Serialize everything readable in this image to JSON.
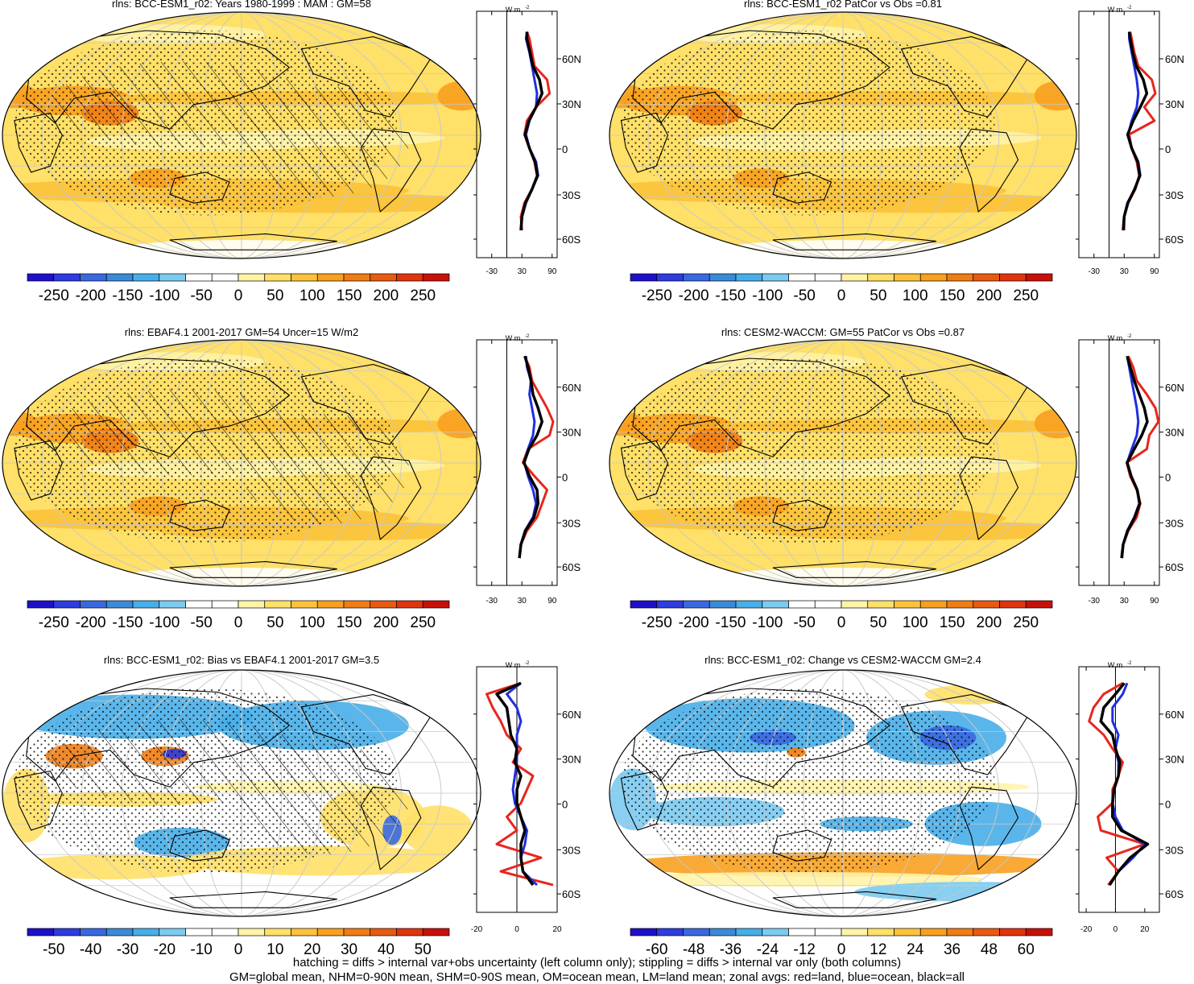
{
  "figure": {
    "footer_lines": [
      "hatching = diffs > internal var+obs uncertainty (left column only); stippling = diffs > internal var only (both columns)",
      "GM=global mean, NHM=0-90N mean, SHM=0-90S mean, OM=ocean mean, LM=land mean; zonal avgs: red=land, blue=ocean, black=all"
    ],
    "zonal_units_label": "W m",
    "zonal_units_exponent": "-2",
    "latitude_ticks": [
      "60N",
      "30N",
      "0",
      "30S",
      "60S"
    ],
    "line_colors": {
      "land": "#e8261c",
      "ocean": "#1f2fe0",
      "all": "#000000"
    }
  },
  "chart_data": [
    {
      "type": "heatmap",
      "title": "rlns: BCC-ESM1_r02: Years 1980-1999 : MAM : GM=58",
      "colorbar_labels": [
        "-250",
        "-200",
        "-150",
        "-100",
        "-50",
        "0",
        "50",
        "100",
        "150",
        "200",
        "250"
      ],
      "hatching": true,
      "stippling": true,
      "zonal_xlim": [
        -60,
        100
      ],
      "zonal_xticks": [
        "-30",
        "30",
        "90"
      ],
      "zonal_lat": [
        75,
        70,
        60,
        50,
        40,
        30,
        20,
        10,
        0,
        -10,
        -20,
        -30,
        -40,
        -50,
        -60,
        -70
      ],
      "zonal_series": [
        {
          "name": "land",
          "values": [
            40,
            45,
            50,
            55,
            80,
            85,
            58,
            40,
            35,
            45,
            55,
            60,
            50,
            35,
            28,
            30
          ]
        },
        {
          "name": "ocean",
          "values": [
            40,
            38,
            45,
            50,
            55,
            60,
            58,
            45,
            38,
            45,
            58,
            62,
            50,
            38,
            30,
            28
          ]
        },
        {
          "name": "all",
          "values": [
            40,
            40,
            46,
            52,
            65,
            70,
            58,
            44,
            36,
            45,
            56,
            61,
            50,
            37,
            30,
            28
          ]
        }
      ]
    },
    {
      "type": "heatmap",
      "title": "rlns: BCC-ESM1_r02 PatCor vs Obs =0.81",
      "colorbar_labels": [
        "-250",
        "-200",
        "-150",
        "-100",
        "-50",
        "0",
        "50",
        "100",
        "150",
        "200",
        "250"
      ],
      "hatching": false,
      "stippling": true,
      "zonal_xlim": [
        -60,
        100
      ],
      "zonal_xticks": [
        "-30",
        "30",
        "90"
      ],
      "zonal_lat": [
        75,
        70,
        60,
        50,
        40,
        30,
        20,
        10,
        0,
        -10,
        -20,
        -30,
        -40,
        -50,
        -60,
        -70
      ],
      "zonal_series": [
        {
          "name": "land",
          "values": [
            42,
            45,
            50,
            58,
            85,
            92,
            70,
            90,
            40,
            45,
            55,
            60,
            52,
            38,
            30,
            30
          ]
        },
        {
          "name": "ocean",
          "values": [
            40,
            40,
            45,
            50,
            55,
            58,
            55,
            45,
            38,
            45,
            58,
            62,
            50,
            38,
            30,
            28
          ]
        },
        {
          "name": "all",
          "values": [
            40,
            42,
            47,
            54,
            68,
            75,
            62,
            48,
            37,
            45,
            57,
            61,
            51,
            37,
            30,
            28
          ]
        }
      ]
    },
    {
      "type": "heatmap",
      "title": "rlns: EBAF4.1 2001-2017 GM=54 Uncer=15 W/m2",
      "colorbar_labels": [
        "-250",
        "-200",
        "-150",
        "-100",
        "-50",
        "0",
        "50",
        "100",
        "150",
        "200",
        "250"
      ],
      "hatching": true,
      "stippling": true,
      "zonal_xlim": [
        -60,
        100
      ],
      "zonal_xticks": [
        "-30",
        "30",
        "90"
      ],
      "zonal_lat": [
        78,
        70,
        60,
        50,
        40,
        30,
        20,
        10,
        0,
        -10,
        -20,
        -30,
        -40,
        -50,
        -60,
        -70
      ],
      "zonal_series": [
        {
          "name": "land",
          "values": [
            35,
            45,
            50,
            65,
            80,
            92,
            85,
            42,
            32,
            55,
            80,
            70,
            60,
            40,
            28,
            25
          ]
        },
        {
          "name": "ocean",
          "values": [
            38,
            40,
            48,
            45,
            50,
            55,
            52,
            42,
            35,
            42,
            52,
            58,
            52,
            36,
            28,
            25
          ]
        },
        {
          "name": "all",
          "values": [
            36,
            42,
            48,
            52,
            62,
            70,
            60,
            44,
            34,
            45,
            60,
            62,
            54,
            37,
            28,
            25
          ]
        }
      ]
    },
    {
      "type": "heatmap",
      "title": "rlns: CESM2-WACCM: GM=55 PatCor vs Obs =0.87",
      "colorbar_labels": [
        "-250",
        "-200",
        "-150",
        "-100",
        "-50",
        "0",
        "50",
        "100",
        "150",
        "200",
        "250"
      ],
      "hatching": false,
      "stippling": true,
      "zonal_xlim": [
        -60,
        100
      ],
      "zonal_xticks": [
        "-30",
        "30",
        "90"
      ],
      "zonal_lat": [
        78,
        70,
        60,
        50,
        40,
        30,
        20,
        10,
        0,
        -10,
        -20,
        -30,
        -40,
        -50,
        -60,
        -70
      ],
      "zonal_series": [
        {
          "name": "land",
          "values": [
            38,
            48,
            55,
            75,
            92,
            98,
            80,
            75,
            35,
            42,
            55,
            62,
            55,
            38,
            28,
            26
          ]
        },
        {
          "name": "ocean",
          "values": [
            36,
            40,
            45,
            50,
            55,
            58,
            55,
            45,
            36,
            44,
            56,
            60,
            50,
            36,
            28,
            25
          ]
        },
        {
          "name": "all",
          "values": [
            36,
            42,
            50,
            60,
            70,
            76,
            65,
            50,
            36,
            44,
            56,
            61,
            51,
            37,
            28,
            25
          ]
        }
      ]
    },
    {
      "type": "heatmap",
      "title": "rlns: BCC-ESM1_r02: Bias vs EBAF4.1 2001-2017 GM=3.5",
      "colorbar_labels": [
        "-50",
        "-40",
        "-30",
        "-20",
        "-10",
        "0",
        "10",
        "20",
        "30",
        "40",
        "50"
      ],
      "hatching": true,
      "stippling": true,
      "zonal_xlim": [
        -20,
        20
      ],
      "zonal_xticks": [
        "-20",
        "0",
        "20"
      ],
      "zonal_lat": [
        78,
        70,
        60,
        50,
        40,
        30,
        20,
        10,
        0,
        -10,
        -20,
        -30,
        -40,
        -50,
        -60,
        -70
      ],
      "zonal_series": [
        {
          "name": "land",
          "values": [
            2,
            -15,
            -12,
            -8,
            -5,
            2,
            -2,
            8,
            5,
            2,
            -5,
            0,
            -10,
            12,
            -8,
            18
          ]
        },
        {
          "name": "ocean",
          "values": [
            2,
            -5,
            0,
            2,
            0,
            0,
            0,
            -1,
            -2,
            -1,
            2,
            5,
            4,
            2,
            3,
            10
          ]
        },
        {
          "name": "all",
          "values": [
            2,
            -10,
            -5,
            -4,
            -3,
            0,
            -1,
            2,
            0,
            0,
            2,
            4,
            2,
            2,
            3,
            8
          ]
        }
      ]
    },
    {
      "type": "heatmap",
      "title": "rlns: BCC-ESM1_r02: Change vs CESM2-WACCM GM=2.4",
      "colorbar_labels": [
        "-60",
        "-48",
        "-36",
        "-24",
        "-12",
        "0",
        "12",
        "24",
        "36",
        "48",
        "60"
      ],
      "hatching": false,
      "stippling": true,
      "zonal_xlim": [
        -25,
        30
      ],
      "zonal_xticks": [
        "-20",
        "0",
        "20"
      ],
      "zonal_lat": [
        78,
        70,
        60,
        50,
        40,
        30,
        20,
        10,
        0,
        -10,
        -20,
        -30,
        -40,
        -50,
        -60,
        -70
      ],
      "zonal_series": [
        {
          "name": "land",
          "values": [
            5,
            -8,
            -15,
            -18,
            -8,
            -2,
            5,
            2,
            -2,
            -2,
            -12,
            -10,
            20,
            -6,
            2,
            -5
          ]
        },
        {
          "name": "ocean",
          "values": [
            8,
            5,
            -2,
            -2,
            2,
            0,
            2,
            2,
            -1,
            -2,
            0,
            5,
            20,
            12,
            2,
            -4
          ]
        },
        {
          "name": "all",
          "values": [
            6,
            0,
            -8,
            -10,
            -2,
            0,
            3,
            2,
            -1,
            -2,
            -2,
            4,
            22,
            10,
            2,
            -4
          ]
        }
      ]
    }
  ]
}
